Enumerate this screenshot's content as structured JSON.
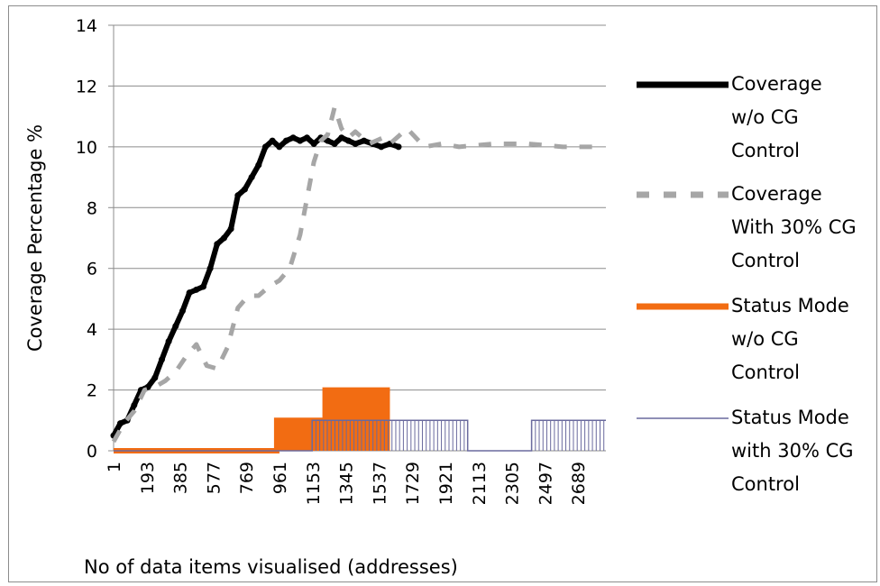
{
  "chart_data": {
    "type": "line",
    "title": "",
    "xlabel": "No of data items visualised (addresses)",
    "ylabel": "Coverage Percentage %",
    "ylim": [
      0,
      14
    ],
    "yticks": [
      0,
      2,
      4,
      6,
      8,
      10,
      12,
      14
    ],
    "xlim": [
      1,
      2850
    ],
    "xticks": [
      1,
      193,
      385,
      577,
      769,
      961,
      1153,
      1345,
      1537,
      1729,
      1921,
      2113,
      2305,
      2497,
      2689
    ],
    "grid": true,
    "legend_position": "right",
    "series": [
      {
        "name": "Coverage w/o CG Control",
        "color": "#000000",
        "style": "solid-thick",
        "x": [
          1,
          40,
          80,
          120,
          160,
          200,
          240,
          280,
          320,
          360,
          400,
          440,
          480,
          520,
          560,
          600,
          640,
          680,
          720,
          760,
          800,
          840,
          880,
          920,
          960,
          1000,
          1040,
          1080,
          1120,
          1160,
          1200,
          1240,
          1280,
          1320,
          1360,
          1400,
          1450,
          1500,
          1550,
          1600,
          1650
        ],
        "y": [
          0.5,
          0.9,
          1.0,
          1.5,
          2.0,
          2.1,
          2.4,
          3.0,
          3.6,
          4.1,
          4.6,
          5.2,
          5.3,
          5.4,
          6.0,
          6.8,
          7.0,
          7.3,
          8.4,
          8.6,
          9.0,
          9.4,
          10.0,
          10.2,
          10.0,
          10.2,
          10.3,
          10.2,
          10.3,
          10.1,
          10.3,
          10.2,
          10.1,
          10.3,
          10.2,
          10.1,
          10.2,
          10.1,
          10.0,
          10.1,
          10.0
        ]
      },
      {
        "name": "Coverage With 30% CG Control",
        "color": "#a6a6a6",
        "style": "dashed",
        "x": [
          1,
          60,
          120,
          180,
          240,
          300,
          360,
          420,
          480,
          540,
          600,
          660,
          720,
          780,
          840,
          900,
          960,
          1020,
          1080,
          1120,
          1160,
          1200,
          1240,
          1280,
          1320,
          1360,
          1400,
          1440,
          1480,
          1520,
          1560,
          1600,
          1700,
          1800,
          1900,
          2000,
          2200,
          2400,
          2600,
          2800
        ],
        "y": [
          0.3,
          0.9,
          1.3,
          2.0,
          2.1,
          2.3,
          2.6,
          3.1,
          3.5,
          2.8,
          2.7,
          3.4,
          4.7,
          5.1,
          5.1,
          5.4,
          5.6,
          6.0,
          7.1,
          8.3,
          9.5,
          10.2,
          10.4,
          11.3,
          10.6,
          10.3,
          10.5,
          10.3,
          10.1,
          10.2,
          10.3,
          10.1,
          10.6,
          10.0,
          10.1,
          10.0,
          10.1,
          10.1,
          10.0,
          10.0
        ]
      },
      {
        "name": "Status Mode w/o CG Control",
        "color": "#f26c12",
        "style": "solid-thick",
        "segments": [
          {
            "x0": 1,
            "x1": 945,
            "y": 0
          },
          {
            "x0": 945,
            "x1": 1225,
            "y": 1
          },
          {
            "x0": 1225,
            "x1": 1600,
            "y": 2
          }
        ]
      },
      {
        "name": "Status Mode with 30% CG Control",
        "color": "#6a6a9e",
        "style": "solid-thin",
        "segments": [
          {
            "x0": 1,
            "x1": 1150,
            "y": 0
          },
          {
            "x0": 1150,
            "x1": 2050,
            "y": 1
          },
          {
            "x0": 2050,
            "x1": 2420,
            "y": 0
          },
          {
            "x0": 2420,
            "x1": 2850,
            "y": 1
          }
        ]
      }
    ]
  }
}
